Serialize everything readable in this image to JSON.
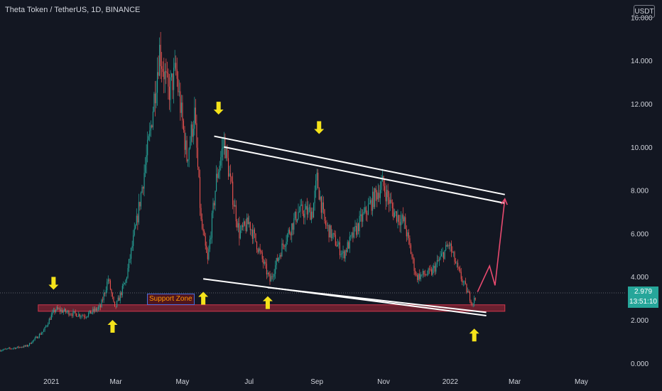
{
  "header": {
    "title": "Theta Token / TetherUS, 1D, BINANCE",
    "currency": "USDT"
  },
  "price_badge": {
    "price": "2.979",
    "countdown": "13:51:10"
  },
  "annotations": {
    "support_zone_label": "Support Zone"
  },
  "colors": {
    "background": "#131722",
    "up": "#26a69a",
    "down": "#ef5350",
    "arrow": "#f5e31a",
    "channel": "#ffffff",
    "support_zone": "#b2283b",
    "projection": "#e84a6f"
  },
  "chart_data": {
    "type": "candlestick",
    "title": "Theta Token / TetherUS, 1D, BINANCE",
    "y_axis": {
      "position": "right",
      "range": [
        -0.3,
        16.8
      ],
      "ticks": [
        "16.000",
        "14.000",
        "12.000",
        "10.000",
        "8.000",
        "6.000",
        "4.000",
        "2.000",
        "0.000"
      ]
    },
    "x_axis": {
      "range": [
        "2020-11-15",
        "2022-06-10"
      ],
      "ticks": [
        {
          "label": "2021",
          "date": "2021-01-01"
        },
        {
          "label": "Mar",
          "date": "2021-03-01"
        },
        {
          "label": "May",
          "date": "2021-05-01"
        },
        {
          "label": "Jul",
          "date": "2021-07-01"
        },
        {
          "label": "Sep",
          "date": "2021-09-01"
        },
        {
          "label": "Nov",
          "date": "2021-11-01"
        },
        {
          "label": "2022",
          "date": "2022-01-01"
        },
        {
          "label": "Mar",
          "date": "2022-03-01"
        },
        {
          "label": "May",
          "date": "2022-05-01"
        }
      ]
    },
    "grid": false,
    "price_path": [
      [
        "2020-11-15",
        0.6
      ],
      [
        "2020-12-10",
        0.8
      ],
      [
        "2020-12-25",
        1.5
      ],
      [
        "2021-01-01",
        2.2
      ],
      [
        "2021-01-05",
        2.5
      ],
      [
        "2021-01-20",
        2.3
      ],
      [
        "2021-02-01",
        2.2
      ],
      [
        "2021-02-15",
        2.6
      ],
      [
        "2021-02-22",
        3.9
      ],
      [
        "2021-02-28",
        2.5
      ],
      [
        "2021-03-10",
        3.8
      ],
      [
        "2021-03-20",
        6.5
      ],
      [
        "2021-04-01",
        10.5
      ],
      [
        "2021-04-10",
        14.5
      ],
      [
        "2021-04-18",
        12.5
      ],
      [
        "2021-04-25",
        13.5
      ],
      [
        "2021-05-05",
        9.5
      ],
      [
        "2021-05-12",
        11.5
      ],
      [
        "2021-05-18",
        6.5
      ],
      [
        "2021-05-24",
        4.7
      ],
      [
        "2021-06-01",
        8.5
      ],
      [
        "2021-06-08",
        10.3
      ],
      [
        "2021-06-15",
        8.0
      ],
      [
        "2021-06-22",
        6.0
      ],
      [
        "2021-07-01",
        6.5
      ],
      [
        "2021-07-20",
        3.8
      ],
      [
        "2021-08-01",
        5.5
      ],
      [
        "2021-08-15",
        7.0
      ],
      [
        "2021-08-28",
        7.0
      ],
      [
        "2021-09-01",
        8.5
      ],
      [
        "2021-09-08",
        6.5
      ],
      [
        "2021-09-25",
        5.0
      ],
      [
        "2021-10-10",
        6.5
      ],
      [
        "2021-10-31",
        8.3
      ],
      [
        "2021-11-10",
        7.0
      ],
      [
        "2021-11-20",
        6.5
      ],
      [
        "2021-12-01",
        4.0
      ],
      [
        "2021-12-15",
        4.2
      ],
      [
        "2021-12-31",
        5.5
      ],
      [
        "2022-01-08",
        4.3
      ],
      [
        "2022-01-21",
        2.8
      ],
      [
        "2022-01-24",
        2.979
      ]
    ],
    "arrows": [
      {
        "direction": "down",
        "date": "2021-01-03",
        "price": 3.4
      },
      {
        "direction": "up",
        "date": "2021-02-26",
        "price": 2.0
      },
      {
        "direction": "up",
        "date": "2021-05-20",
        "price": 3.3
      },
      {
        "direction": "down",
        "date": "2021-06-03",
        "price": 11.5
      },
      {
        "direction": "up",
        "date": "2021-07-18",
        "price": 3.1
      },
      {
        "direction": "down",
        "date": "2021-09-03",
        "price": 10.6
      },
      {
        "direction": "up",
        "date": "2022-01-23",
        "price": 1.6
      }
    ],
    "support_zone": {
      "from": "2020-12-20",
      "to": "2022-02-20",
      "low": 2.4,
      "high": 2.7,
      "label": "Support Zone"
    },
    "channel_lines": [
      {
        "from": [
          "2021-05-30",
          10.5
        ],
        "to": [
          "2022-02-20",
          7.8
        ]
      },
      {
        "from": [
          "2021-06-08",
          10.0
        ],
        "to": [
          "2022-02-20",
          7.4
        ]
      },
      {
        "from": [
          "2021-05-20",
          3.9
        ],
        "to": [
          "2022-02-03",
          2.2
        ]
      },
      {
        "from": [
          "2021-07-18",
          3.5
        ],
        "to": [
          "2022-02-03",
          2.35
        ]
      }
    ],
    "projection": [
      [
        "2022-01-26",
        3.3
      ],
      [
        "2022-02-06",
        4.5
      ],
      [
        "2022-02-11",
        3.6
      ],
      [
        "2022-02-20",
        7.6
      ]
    ]
  }
}
